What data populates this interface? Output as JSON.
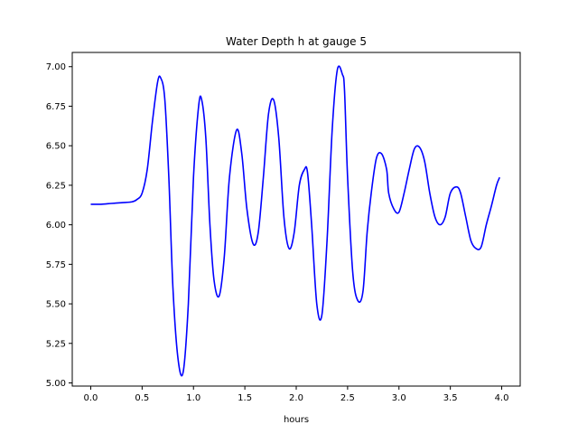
{
  "chart_data": {
    "type": "line",
    "title": "Water Depth h at gauge 5",
    "xlabel": "hours",
    "ylabel": "",
    "xlim": [
      -0.18,
      4.18
    ],
    "ylim": [
      4.98,
      7.09
    ],
    "grid": false,
    "legend": "none",
    "xticks": [
      0.0,
      0.5,
      1.0,
      1.5,
      2.0,
      2.5,
      3.0,
      3.5,
      4.0
    ],
    "xtick_labels": [
      "0.0",
      "0.5",
      "1.0",
      "1.5",
      "2.0",
      "2.5",
      "3.0",
      "3.5",
      "4.0"
    ],
    "yticks": [
      5.0,
      5.25,
      5.5,
      5.75,
      6.0,
      6.25,
      6.5,
      6.75,
      7.0
    ],
    "ytick_labels": [
      "5.00",
      "5.25",
      "5.50",
      "5.75",
      "6.00",
      "6.25",
      "6.50",
      "6.75",
      "7.00"
    ],
    "series": [
      {
        "color": "#0000ff",
        "x": [
          0.0,
          0.1,
          0.2,
          0.3,
          0.4,
          0.45,
          0.5,
          0.55,
          0.6,
          0.65,
          0.68,
          0.72,
          0.76,
          0.8,
          0.85,
          0.9,
          0.95,
          1.0,
          1.05,
          1.08,
          1.12,
          1.16,
          1.2,
          1.25,
          1.3,
          1.35,
          1.42,
          1.47,
          1.52,
          1.58,
          1.63,
          1.68,
          1.73,
          1.78,
          1.83,
          1.88,
          1.93,
          1.98,
          2.03,
          2.08,
          2.11,
          2.15,
          2.2,
          2.25,
          2.3,
          2.35,
          2.4,
          2.45,
          2.47,
          2.5,
          2.55,
          2.6,
          2.65,
          2.69,
          2.73,
          2.78,
          2.83,
          2.88,
          2.9,
          2.95,
          3.0,
          3.05,
          3.1,
          3.15,
          3.2,
          3.25,
          3.3,
          3.35,
          3.4,
          3.45,
          3.5,
          3.56,
          3.6,
          3.65,
          3.7,
          3.75,
          3.8,
          3.85,
          3.9,
          3.95,
          3.98
        ],
        "y": [
          6.13,
          6.13,
          6.135,
          6.14,
          6.145,
          6.16,
          6.2,
          6.35,
          6.65,
          6.9,
          6.93,
          6.8,
          6.3,
          5.6,
          5.15,
          5.07,
          5.5,
          6.3,
          6.75,
          6.79,
          6.55,
          6.0,
          5.65,
          5.55,
          5.8,
          6.3,
          6.6,
          6.45,
          6.1,
          5.88,
          5.95,
          6.3,
          6.7,
          6.79,
          6.55,
          6.05,
          5.85,
          5.95,
          6.25,
          6.35,
          6.33,
          6.0,
          5.5,
          5.43,
          5.9,
          6.6,
          6.98,
          6.95,
          6.85,
          6.3,
          5.7,
          5.52,
          5.58,
          5.95,
          6.2,
          6.42,
          6.45,
          6.35,
          6.2,
          6.1,
          6.08,
          6.2,
          6.35,
          6.48,
          6.49,
          6.4,
          6.2,
          6.05,
          6.0,
          6.05,
          6.2,
          6.24,
          6.2,
          6.05,
          5.9,
          5.85,
          5.86,
          6.0,
          6.12,
          6.25,
          6.3
        ]
      }
    ]
  }
}
